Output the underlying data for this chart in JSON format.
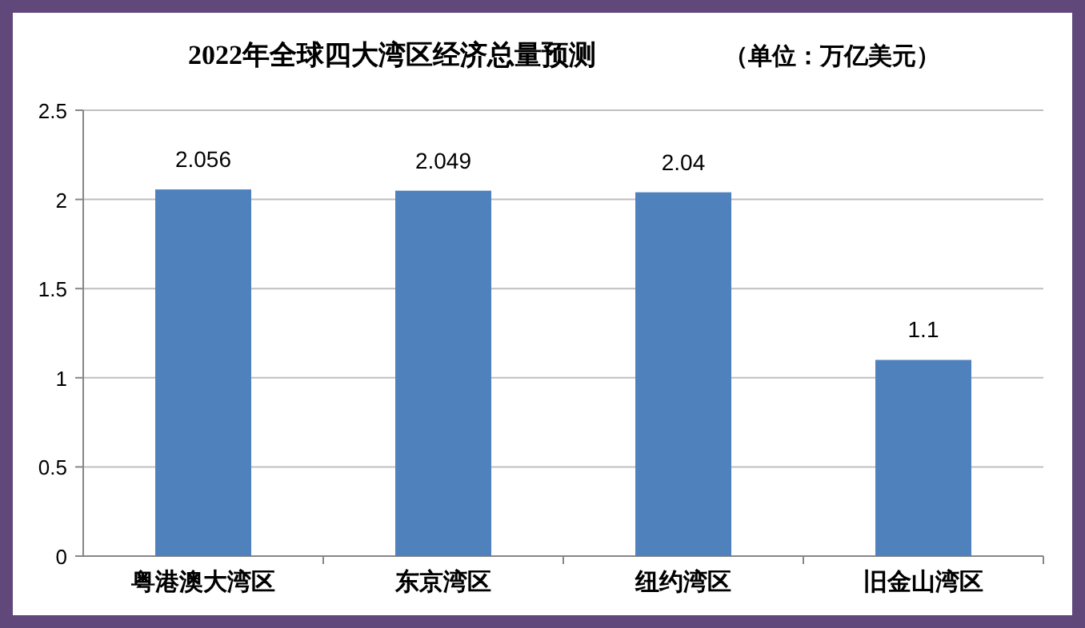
{
  "chart_data": {
    "type": "bar",
    "title": "2022年全球四大湾区经济总量预测",
    "subtitle": "（单位：万亿美元）",
    "categories": [
      "粤港澳大湾区",
      "东京湾区",
      "纽约湾区",
      "旧金山湾区"
    ],
    "values": [
      2.056,
      2.049,
      2.04,
      1.1
    ],
    "color": "#4f81bd",
    "ylim": [
      0,
      2.5
    ],
    "yticks": [
      0,
      0.5,
      1,
      1.5,
      2,
      2.5
    ],
    "grid": "y",
    "data_labels": true
  }
}
